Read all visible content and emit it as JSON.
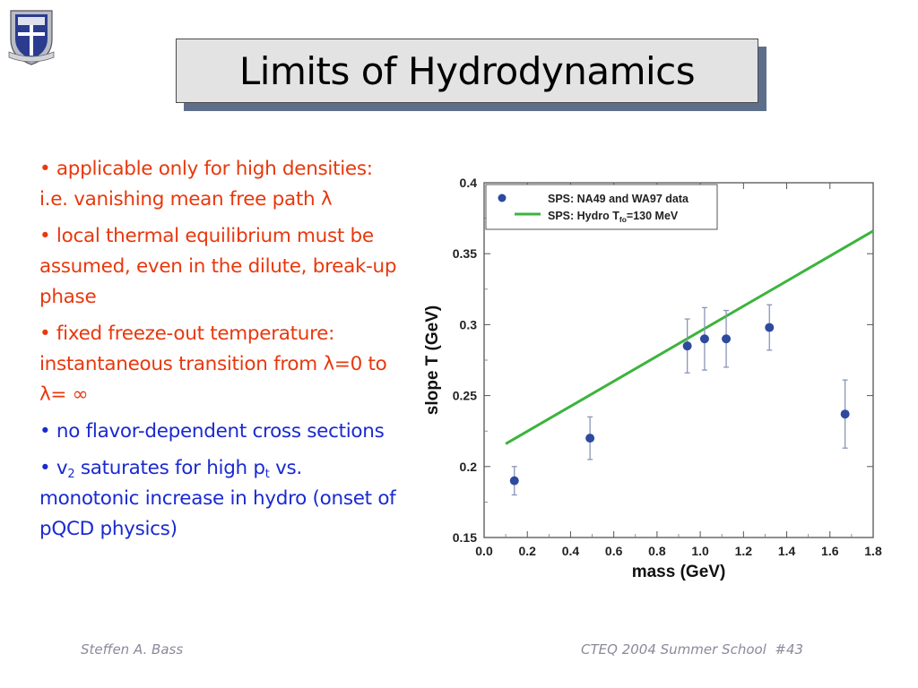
{
  "title": "Limits of Hydrodynamics",
  "logo": {
    "icon": "university-crest-icon",
    "colors": {
      "field": "#2b3c8f",
      "trim": "#b8bcc6"
    }
  },
  "bullets": [
    {
      "color": "#e8380d",
      "text": "• applicable only for high densities: i.e. vanishing mean free path λ"
    },
    {
      "color": "#e8380d",
      "text": "• local thermal equilibrium must be assumed, even in the dilute, break-up phase"
    },
    {
      "color": "#e8380d",
      "text": "• fixed freeze-out temperature: instantaneous transition from λ=0 to λ= ∞"
    },
    {
      "color": "#1a2ad0",
      "text": "• no flavor-dependent cross sections"
    },
    {
      "color": "#1a2ad0",
      "parts": {
        "p1": "• v",
        "sub1": "2",
        "p2": " saturates for high p",
        "sub2": "t",
        "p3": " vs. monotonic increase in hydro (onset of pQCD physics)"
      }
    }
  ],
  "chart_data": {
    "type": "scatter",
    "xlabel": "mass (GeV)",
    "ylabel": "slope T (GeV)",
    "xlim": [
      0.0,
      1.8
    ],
    "ylim": [
      0.15,
      0.4
    ],
    "xticks": [
      "0.0",
      "0.2",
      "0.4",
      "0.6",
      "0.8",
      "1.0",
      "1.2",
      "1.4",
      "1.6",
      "1.8"
    ],
    "yticks": [
      "0.15",
      "0.2",
      "0.25",
      "0.3",
      "0.35",
      "0.4"
    ],
    "grid": false,
    "legend_position": "top-left",
    "series": [
      {
        "name": "SPS: NA49 and WA97 data",
        "kind": "points",
        "color": "#2e4a9e",
        "x": [
          0.14,
          0.49,
          0.94,
          1.02,
          1.12,
          1.32,
          1.67
        ],
        "y": [
          0.19,
          0.22,
          0.285,
          0.29,
          0.29,
          0.298,
          0.237
        ],
        "yerr": [
          0.01,
          0.015,
          0.019,
          0.022,
          0.02,
          0.016,
          0.024
        ]
      },
      {
        "name_parts": {
          "p1": "SPS: Hydro T",
          "sub": "fo",
          "p2": "=130 MeV"
        },
        "kind": "line",
        "color": "#3cb43c",
        "x": [
          0.1,
          1.8
        ],
        "y": [
          0.216,
          0.366
        ]
      }
    ]
  },
  "footer": {
    "left": "Steffen A. Bass",
    "right": "CTEQ 2004 Summer School  #43"
  }
}
